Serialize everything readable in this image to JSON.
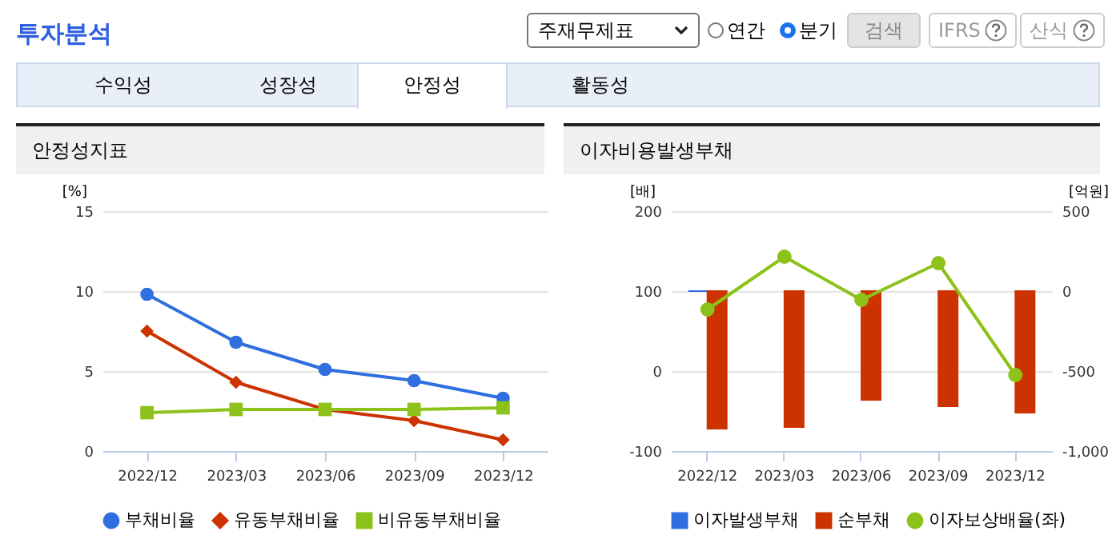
{
  "chart_data": [
    {
      "type": "other",
      "title": "투자분석",
      "annotations": [
        "주재무제표",
        "연간",
        "분기",
        "검색",
        "IFRS",
        "산식",
        "수익성",
        "성장성",
        "안정성",
        "활동성"
      ]
    },
    {
      "type": "line",
      "title": "안정성지표",
      "ylabel": "[%]",
      "categories": [
        "2022/12",
        "2023/03",
        "2023/06",
        "2023/09",
        "2023/12"
      ],
      "ylim": [
        0,
        15
      ],
      "yticks": [
        0,
        5,
        10,
        15
      ],
      "grid": "y",
      "legend": "bottom",
      "series": [
        {
          "name": "부채비율",
          "color": "#2f6fdf",
          "marker": "circle",
          "values": [
            9.8,
            6.8,
            5.1,
            4.4,
            3.3
          ]
        },
        {
          "name": "유동부채비율",
          "color": "#cc3300",
          "marker": "diamond",
          "values": [
            7.5,
            4.3,
            2.6,
            1.9,
            0.7
          ]
        },
        {
          "name": "비유동부채비율",
          "color": "#8cc21a",
          "marker": "square",
          "values": [
            2.4,
            2.6,
            2.6,
            2.6,
            2.7
          ]
        }
      ]
    },
    {
      "type": "bar",
      "title": "이자비용발생부채",
      "ylabel": "[배]",
      "y2label": "[억원]",
      "categories": [
        "2022/12",
        "2023/03",
        "2023/06",
        "2023/09",
        "2023/12"
      ],
      "ylim": [
        -100,
        200
      ],
      "yticks": [
        -100,
        0,
        100,
        200
      ],
      "y2lim": [
        -1000,
        500
      ],
      "y2ticks": [
        {
          "value": -1000,
          "label": "-1,000"
        },
        -500,
        0,
        500
      ],
      "grid": "y",
      "legend": "bottom",
      "series": [
        {
          "name": "이자발생부채",
          "color": "#2f6fdf",
          "axis": "y2",
          "values": [
            0,
            null,
            null,
            null,
            null
          ]
        },
        {
          "name": "순부채",
          "color": "#cc3300",
          "axis": "y2",
          "values": [
            -860,
            -850,
            -680,
            -720,
            -760
          ]
        },
        {
          "name": "이자보상배율(좌)",
          "type": "line",
          "color": "#8cc21a",
          "marker": "circle",
          "values": [
            77,
            143,
            89,
            135,
            -5
          ]
        }
      ]
    }
  ]
}
